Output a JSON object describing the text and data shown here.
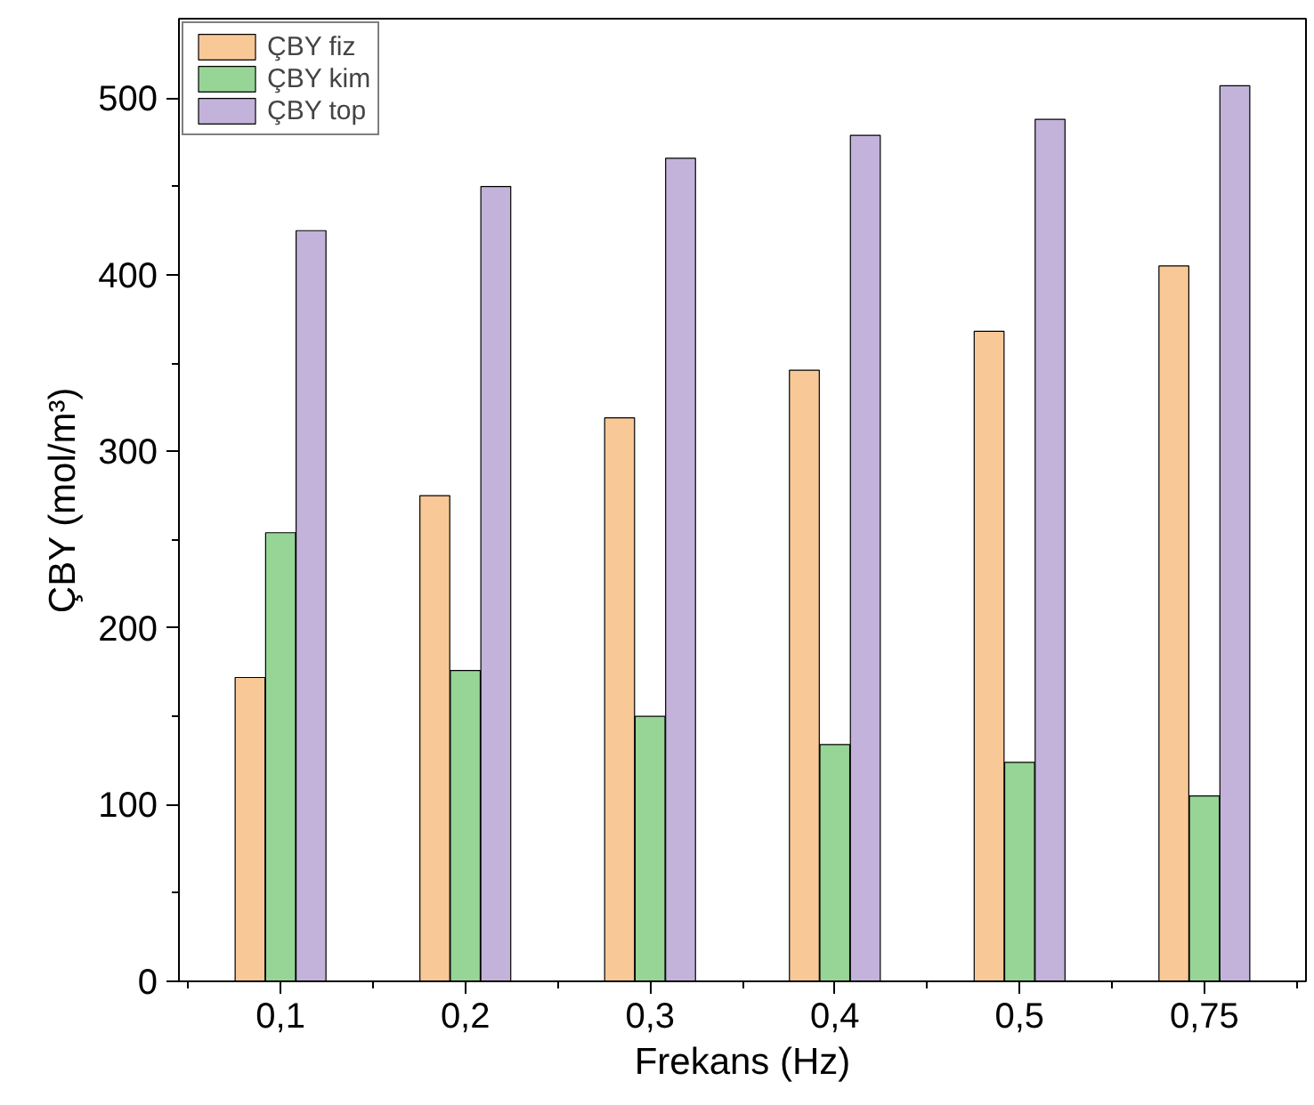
{
  "chart_data": {
    "type": "bar",
    "xlabel": "Frekans (Hz)",
    "ylabel": "ÇBY (mol/m³)",
    "categories": [
      "0,1",
      "0,2",
      "0,3",
      "0,4",
      "0,5",
      "0,75"
    ],
    "series": [
      {
        "name": "ÇBY fiz",
        "color": "#f9c897",
        "values": [
          172,
          275,
          319,
          346,
          368,
          405
        ]
      },
      {
        "name": "ÇBY kim",
        "color": "#96d596",
        "values": [
          254,
          176,
          150,
          134,
          124,
          105
        ]
      },
      {
        "name": "ÇBY top",
        "color": "#c3b3da",
        "values": [
          425,
          450,
          466,
          479,
          488,
          507
        ]
      }
    ],
    "ylim": [
      0,
      545
    ],
    "yticks": [
      0,
      100,
      200,
      300,
      400,
      500
    ],
    "grid": false,
    "legend": "top left"
  }
}
